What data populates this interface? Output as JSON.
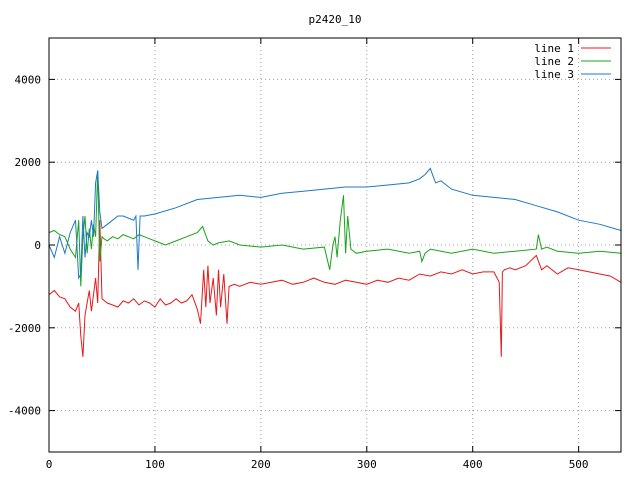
{
  "chart_data": {
    "type": "line",
    "title": "p2420_10",
    "xlabel": "",
    "ylabel": "",
    "xlim": [
      0,
      540
    ],
    "ylim": [
      -5000,
      5000
    ],
    "xticks": [
      0,
      100,
      200,
      300,
      400,
      500
    ],
    "yticks": [
      -4000,
      -2000,
      0,
      2000,
      4000
    ],
    "grid": true,
    "legend_position": "top-right",
    "series": [
      {
        "name": "line 1",
        "color": "#e41a1c",
        "x": [
          0,
          5,
          10,
          15,
          20,
          25,
          28,
          30,
          32,
          34,
          36,
          38,
          40,
          42,
          44,
          46,
          48,
          50,
          55,
          60,
          65,
          70,
          75,
          80,
          85,
          90,
          95,
          100,
          105,
          110,
          115,
          120,
          125,
          130,
          135,
          140,
          143,
          146,
          148,
          150,
          152,
          155,
          158,
          160,
          162,
          165,
          168,
          170,
          175,
          180,
          190,
          200,
          210,
          220,
          230,
          240,
          250,
          260,
          270,
          280,
          290,
          300,
          310,
          320,
          330,
          340,
          350,
          360,
          370,
          380,
          390,
          400,
          410,
          420,
          425,
          427,
          428,
          430,
          435,
          440,
          450,
          460,
          465,
          470,
          480,
          490,
          500,
          510,
          520,
          530,
          540
        ],
        "y": [
          -1200,
          -1100,
          -1250,
          -1300,
          -1500,
          -1600,
          -1400,
          -2200,
          -2700,
          -1700,
          -1400,
          -1100,
          -1600,
          -1200,
          -800,
          -1400,
          600,
          -1300,
          -1400,
          -1450,
          -1500,
          -1350,
          -1400,
          -1300,
          -1450,
          -1350,
          -1400,
          -1500,
          -1300,
          -1450,
          -1400,
          -1300,
          -1400,
          -1350,
          -1200,
          -1550,
          -1900,
          -600,
          -1500,
          -500,
          -1400,
          -800,
          -1700,
          -600,
          -1500,
          -700,
          -1900,
          -1000,
          -950,
          -1000,
          -900,
          -950,
          -900,
          -850,
          -950,
          -900,
          -800,
          -900,
          -950,
          -850,
          -900,
          -950,
          -850,
          -900,
          -800,
          -850,
          -700,
          -750,
          -650,
          -700,
          -600,
          -700,
          -650,
          -650,
          -900,
          -2700,
          -650,
          -600,
          -550,
          -600,
          -500,
          -250,
          -600,
          -500,
          -700,
          -550,
          -600,
          -650,
          -700,
          -750,
          -900
        ]
      },
      {
        "name": "line 2",
        "color": "#1aa31a",
        "x": [
          0,
          5,
          10,
          15,
          20,
          25,
          28,
          30,
          32,
          34,
          36,
          38,
          40,
          42,
          44,
          46,
          48,
          50,
          52,
          55,
          60,
          65,
          70,
          75,
          80,
          85,
          90,
          95,
          100,
          110,
          120,
          130,
          140,
          145,
          150,
          155,
          160,
          170,
          180,
          200,
          220,
          240,
          260,
          265,
          268,
          270,
          272,
          275,
          278,
          280,
          282,
          285,
          290,
          300,
          320,
          340,
          350,
          352,
          355,
          360,
          380,
          400,
          420,
          440,
          460,
          462,
          465,
          470,
          480,
          500,
          520,
          540
        ],
        "y": [
          300,
          350,
          250,
          200,
          -100,
          -300,
          600,
          -1000,
          200,
          700,
          -200,
          400,
          -100,
          500,
          200,
          1800,
          -400,
          200,
          150,
          100,
          200,
          150,
          250,
          200,
          150,
          250,
          200,
          150,
          100,
          0,
          100,
          200,
          300,
          450,
          100,
          0,
          50,
          100,
          0,
          -50,
          0,
          -100,
          -50,
          -600,
          0,
          200,
          -300,
          600,
          1200,
          -200,
          700,
          -100,
          -200,
          -150,
          -100,
          -200,
          -150,
          -400,
          -200,
          -100,
          -200,
          -100,
          -200,
          -150,
          -100,
          250,
          -100,
          -50,
          -150,
          -200,
          -150,
          -200
        ]
      },
      {
        "name": "line 3",
        "color": "#1f78c8",
        "x": [
          0,
          5,
          10,
          15,
          20,
          25,
          28,
          30,
          32,
          34,
          36,
          38,
          40,
          42,
          44,
          46,
          48,
          50,
          55,
          60,
          65,
          70,
          75,
          80,
          82,
          84,
          86,
          90,
          100,
          120,
          140,
          160,
          180,
          200,
          220,
          240,
          260,
          280,
          300,
          320,
          340,
          350,
          355,
          360,
          362,
          365,
          370,
          380,
          400,
          420,
          440,
          460,
          480,
          500,
          520,
          540
        ],
        "y": [
          0,
          -300,
          200,
          -200,
          300,
          600,
          -800,
          -700,
          700,
          -300,
          300,
          200,
          600,
          200,
          1500,
          1800,
          800,
          400,
          500,
          600,
          700,
          700,
          650,
          600,
          700,
          -600,
          700,
          700,
          750,
          900,
          1100,
          1150,
          1200,
          1150,
          1250,
          1300,
          1350,
          1400,
          1400,
          1450,
          1500,
          1600,
          1700,
          1850,
          1700,
          1500,
          1550,
          1350,
          1200,
          1150,
          1100,
          950,
          800,
          600,
          500,
          350
        ]
      }
    ]
  }
}
